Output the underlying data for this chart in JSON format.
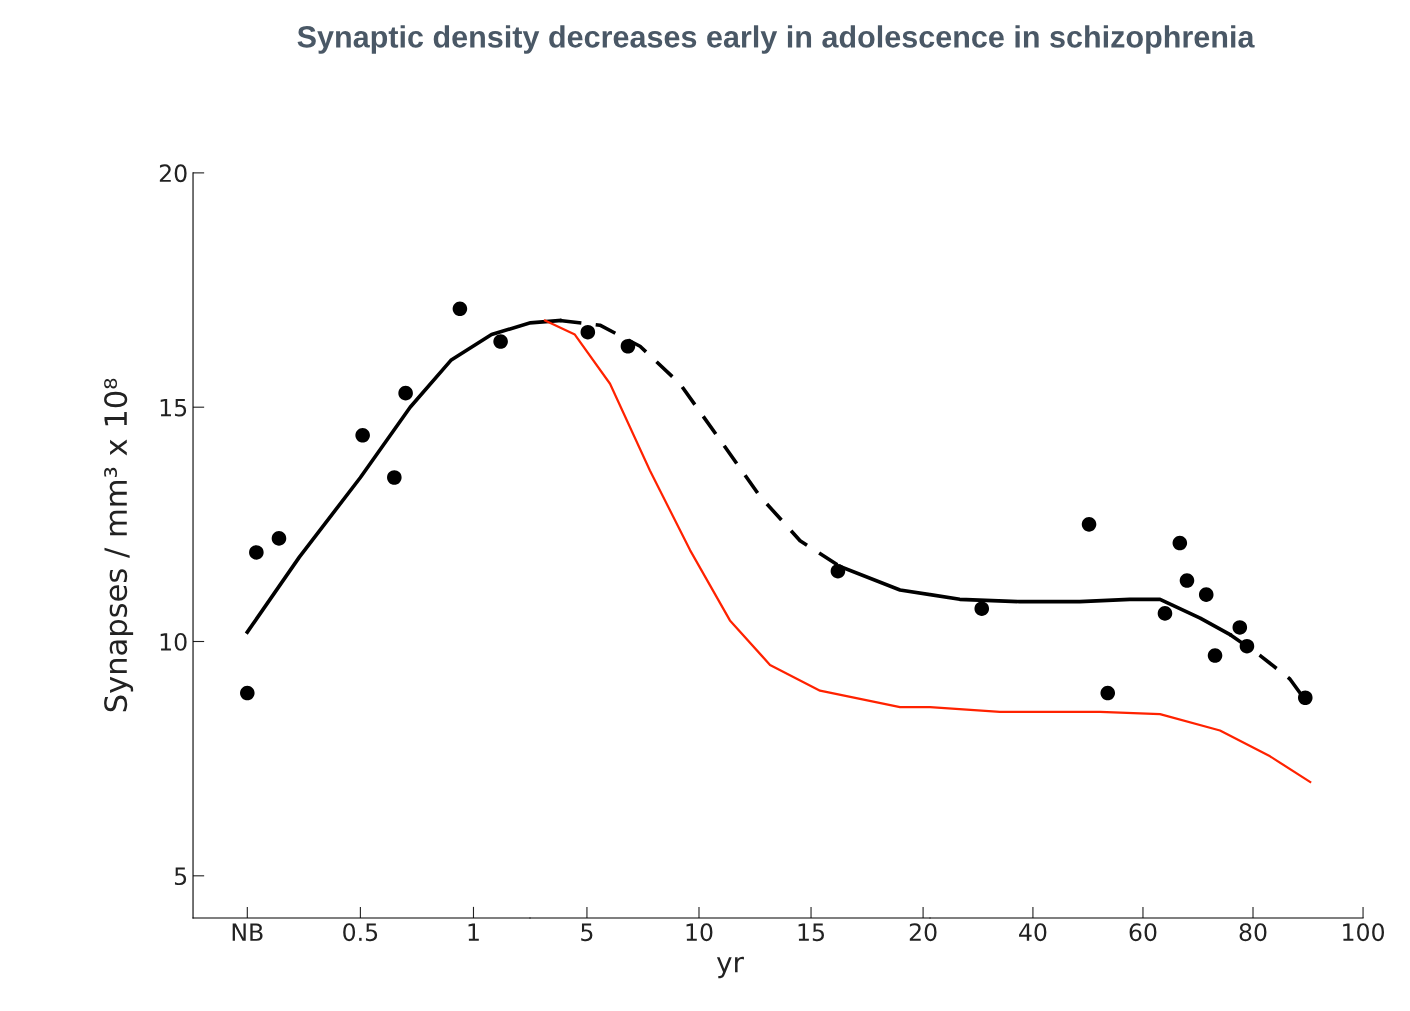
{
  "chart_data": [
    {
      "type": "line",
      "title": "Synaptic density decreases early in adolescence in schizophrenia",
      "ylabel": "Synapses / mm³ x 10⁸",
      "xlim": [
        -0.24,
        1.25
      ],
      "ylim": [
        4.1,
        20
      ],
      "xticks": [
        {
          "value": 0,
          "label": "NB"
        },
        0.5,
        1
      ],
      "yticks": [
        5,
        10,
        15,
        20
      ],
      "grid": false,
      "series": [
        {
          "type": "scatter",
          "color": "#000000",
          "marker": "circle",
          "x": [
            0.0,
            0.04,
            0.14,
            0.51,
            0.65,
            0.7,
            0.94,
            1.12
          ],
          "values": [
            8.9,
            11.9,
            12.2,
            14.4,
            13.5,
            15.3,
            17.1,
            16.4
          ]
        },
        {
          "color": "#000000",
          "line_style": "solid",
          "x": [
            0.0,
            0.23,
            0.5,
            0.72,
            0.9,
            1.08,
            1.25
          ],
          "values": [
            10.2,
            11.8,
            13.5,
            15.0,
            16.0,
            16.55,
            16.8
          ]
        }
      ]
    },
    {
      "type": "line",
      "xlabel": "yr",
      "xlim": [
        2.46,
        20.31
      ],
      "ylim": [
        4.1,
        20
      ],
      "xticks": [
        5,
        10,
        15,
        20
      ],
      "tick_labels": "x",
      "grid": false,
      "series": [
        {
          "type": "scatter",
          "color": "#000000",
          "marker": "circle",
          "x": [
            5.04,
            6.83,
            16.2
          ],
          "values": [
            16.6,
            16.3,
            11.5
          ]
        },
        {
          "color": "#000000",
          "line_style": "solid",
          "x": [
            2.46,
            3.79
          ],
          "values": [
            16.8,
            16.85
          ]
        },
        {
          "color": "#000000",
          "line_style": "dashed",
          "x": [
            3.79,
            5.58,
            7.37,
            9.15,
            10.94,
            12.72,
            14.51,
            16.29
          ],
          "values": [
            16.85,
            16.75,
            16.3,
            15.5,
            14.3,
            13.1,
            12.15,
            11.6
          ]
        },
        {
          "color": "#000000",
          "line_style": "solid",
          "x": [
            16.29,
            18.97,
            20.31
          ],
          "values": [
            11.6,
            11.1,
            11.0
          ]
        },
        {
          "color": "#ff2200",
          "line_style": "solid",
          "x": [
            3.13,
            4.46,
            6.03,
            7.81,
            9.6,
            11.38,
            13.17,
            15.4,
            18.97,
            20.31
          ],
          "values": [
            16.85,
            16.55,
            15.5,
            13.65,
            11.95,
            10.45,
            9.5,
            8.95,
            8.6,
            8.6
          ]
        }
      ]
    },
    {
      "type": "line",
      "xlim": [
        21.3,
        100
      ],
      "ylim": [
        4.1,
        20
      ],
      "xticks": [
        40,
        60,
        80,
        100
      ],
      "tick_labels": "x",
      "grid": false,
      "series": [
        {
          "type": "scatter",
          "color": "#000000",
          "marker": "circle",
          "x": [
            30.7,
            50.2,
            53.6,
            64.0,
            66.7,
            68.0,
            71.5,
            73.1,
            77.6,
            78.9,
            89.5
          ],
          "values": [
            10.7,
            12.5,
            8.9,
            10.6,
            12.1,
            11.3,
            11.0,
            9.7,
            10.3,
            9.9,
            8.8
          ]
        },
        {
          "color": "#000000",
          "line_style": "solid",
          "x": [
            21.3,
            26.7,
            37.6,
            48.5,
            57.6,
            63.1,
            70.4,
            75.8
          ],
          "values": [
            11.0,
            10.9,
            10.85,
            10.85,
            10.9,
            10.9,
            10.5,
            10.15
          ]
        },
        {
          "color": "#000000",
          "line_style": "dashed",
          "x": [
            75.8,
            81.3,
            86.7,
            89.5
          ],
          "values": [
            10.15,
            9.7,
            9.2,
            8.75
          ]
        },
        {
          "color": "#ff2200",
          "line_style": "solid",
          "x": [
            21.3,
            34.0,
            52.2,
            63.1,
            74.0,
            83.1,
            90.4
          ],
          "values": [
            8.6,
            8.5,
            8.5,
            8.45,
            8.1,
            7.55,
            7.0
          ]
        }
      ]
    }
  ]
}
